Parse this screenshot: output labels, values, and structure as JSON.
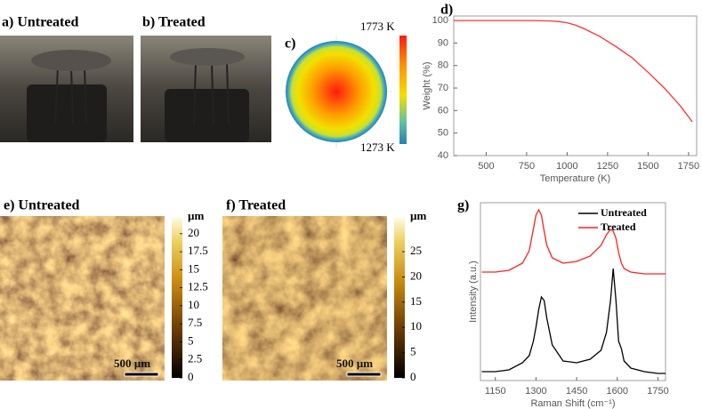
{
  "panels": {
    "a": {
      "label": "a) Untreated"
    },
    "b": {
      "label": "b) Treated"
    },
    "c": {
      "label": "c)",
      "max_label": "1773 K",
      "min_label": "1273 K"
    },
    "e": {
      "label": "e) Untreated",
      "unit": "µm",
      "scale_bar": "500 µm",
      "colorbar_lim": [
        0,
        22.2
      ],
      "colorbar_ticks": [
        0,
        2.5,
        5,
        7.5,
        10,
        12.5,
        15,
        17.5,
        20
      ]
    },
    "f": {
      "label": "f) Treated",
      "unit": "µm",
      "scale_bar": "500 µm",
      "colorbar_lim": [
        0,
        31.7
      ],
      "colorbar_ticks": [
        0,
        5,
        10,
        15,
        20,
        25
      ]
    }
  },
  "chart_data": [
    {
      "type": "line",
      "panel_label": "d)",
      "x_label": "Temperature (K)",
      "y_label": "Weight (%)",
      "x": [
        300,
        400,
        500,
        600,
        700,
        800,
        900,
        950,
        1000,
        1050,
        1100,
        1200,
        1300,
        1400,
        1500,
        1600,
        1700,
        1773
      ],
      "series": [
        {
          "name": "Weight",
          "color": "#ff3030",
          "values": [
            100,
            100,
            100,
            100,
            100,
            100,
            99.8,
            99.5,
            99,
            98,
            96.5,
            93,
            88.5,
            83.5,
            77,
            70,
            62,
            55
          ]
        }
      ],
      "xlim": [
        300,
        1800
      ],
      "ylim": [
        40,
        102
      ],
      "xticks": [
        500,
        750,
        1000,
        1250,
        1500,
        1750
      ],
      "yticks": [
        40,
        50,
        60,
        70,
        80,
        90,
        100
      ],
      "legend": false
    },
    {
      "type": "line",
      "panel_label": "g)",
      "x_label": "Raman Shift (cm⁻¹)",
      "y_label": "Intensity (a.u.)",
      "x": [
        1100,
        1150,
        1200,
        1250,
        1275,
        1290,
        1300,
        1310,
        1320,
        1330,
        1340,
        1360,
        1400,
        1450,
        1500,
        1540,
        1560,
        1575,
        1585,
        1595,
        1605,
        1615,
        1625,
        1650,
        1700,
        1750,
        1778
      ],
      "series": [
        {
          "name": "Untreated",
          "color": "#000000",
          "values": [
            5,
            5,
            6,
            10,
            14,
            22,
            30,
            40,
            47,
            45,
            35,
            20,
            11,
            10,
            12,
            17,
            27,
            45,
            63,
            45,
            22,
            18,
            11,
            7,
            5,
            4,
            4
          ]
        },
        {
          "name": "Treated",
          "color": "#ff2020",
          "values": [
            61,
            61,
            62,
            66,
            73,
            85,
            93,
            96,
            93,
            84,
            76,
            69,
            66,
            67,
            70,
            76,
            82,
            85,
            84,
            80,
            72,
            66,
            63,
            61,
            60,
            60,
            60
          ]
        }
      ],
      "xlim": [
        1095,
        1778
      ],
      "ylim": [
        0,
        100
      ],
      "xticks": [
        1150,
        1300,
        1450,
        1600,
        1750
      ],
      "legend": "upper right"
    }
  ]
}
